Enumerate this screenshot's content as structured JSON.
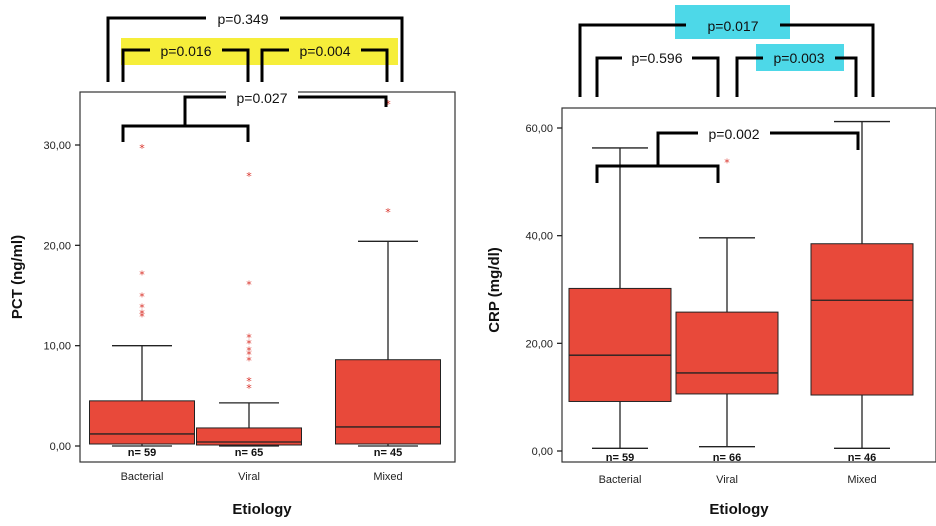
{
  "chart_data": [
    {
      "type": "box",
      "ylabel": "PCT (ng/ml)",
      "xlabel": "Etiology",
      "ylim": [
        -1,
        35
      ],
      "yticks": [
        0,
        10,
        20,
        30
      ],
      "ytick_labels": [
        "0,00",
        "10,00",
        "20,00",
        "30,00"
      ],
      "categories": [
        "Bacterial",
        "Viral",
        "Mixed"
      ],
      "boxes": [
        {
          "category": "Bacterial",
          "min": 0,
          "q1": 0.2,
          "median": 1.2,
          "q3": 4.5,
          "max": 10.0,
          "n_label": "n= 59",
          "outliers": [
            13.0,
            13.3,
            13.9,
            15.0,
            17.2,
            29.8
          ]
        },
        {
          "category": "Viral",
          "min": 0,
          "q1": 0.1,
          "median": 0.4,
          "q3": 1.8,
          "max": 4.3,
          "n_label": "n= 65",
          "outliers": [
            5.9,
            6.6,
            8.6,
            9.2,
            9.6,
            10.3,
            10.9,
            16.2,
            27.0
          ]
        },
        {
          "category": "Mixed",
          "min": 0,
          "q1": 0.2,
          "median": 1.9,
          "q3": 8.6,
          "max": 20.4,
          "n_label": "n= 45",
          "outliers": [
            23.4,
            34.2
          ]
        }
      ],
      "comparisons": [
        {
          "from": 0,
          "to": 2,
          "label": "p=0.349",
          "highlight": ""
        },
        {
          "from": 0,
          "to": 1,
          "label": "p=0.016",
          "highlight": "#f6ee3a"
        },
        {
          "from": 1,
          "to": 2,
          "label": "p=0.004",
          "highlight": "#f6ee3a"
        },
        {
          "from": 0,
          "to": 2,
          "label": "p=0.027",
          "highlight": ""
        }
      ]
    },
    {
      "type": "box",
      "ylabel": "CRP (mg/dl)",
      "xlabel": "Etiology",
      "ylim": [
        -2,
        63
      ],
      "yticks": [
        0,
        20,
        40,
        60
      ],
      "ytick_labels": [
        "0,00",
        "20,00",
        "40,00",
        "60,00"
      ],
      "categories": [
        "Bacterial",
        "Viral",
        "Mixed"
      ],
      "boxes": [
        {
          "category": "Bacterial",
          "min": 0.5,
          "q1": 9.2,
          "median": 17.8,
          "q3": 30.2,
          "max": 56.3,
          "n_label": "n= 59",
          "outliers": []
        },
        {
          "category": "Viral",
          "min": 0.8,
          "q1": 10.6,
          "median": 14.5,
          "q3": 25.8,
          "max": 39.6,
          "n_label": "n= 66",
          "outliers": [
            53.8
          ]
        },
        {
          "category": "Mixed",
          "min": 0.5,
          "q1": 10.4,
          "median": 28.0,
          "q3": 38.5,
          "max": 61.2,
          "n_label": "n= 46",
          "outliers": []
        }
      ],
      "comparisons": [
        {
          "from": 0,
          "to": 2,
          "label": "p=0.017",
          "highlight": "#4dd8e8"
        },
        {
          "from": 0,
          "to": 1,
          "label": "p=0.596",
          "highlight": ""
        },
        {
          "from": 1,
          "to": 2,
          "label": "p=0.003",
          "highlight": "#4dd8e8"
        },
        {
          "from": 0,
          "to": 2,
          "label": "p=0.002",
          "highlight": ""
        }
      ]
    }
  ],
  "outlier_symbol": "*"
}
